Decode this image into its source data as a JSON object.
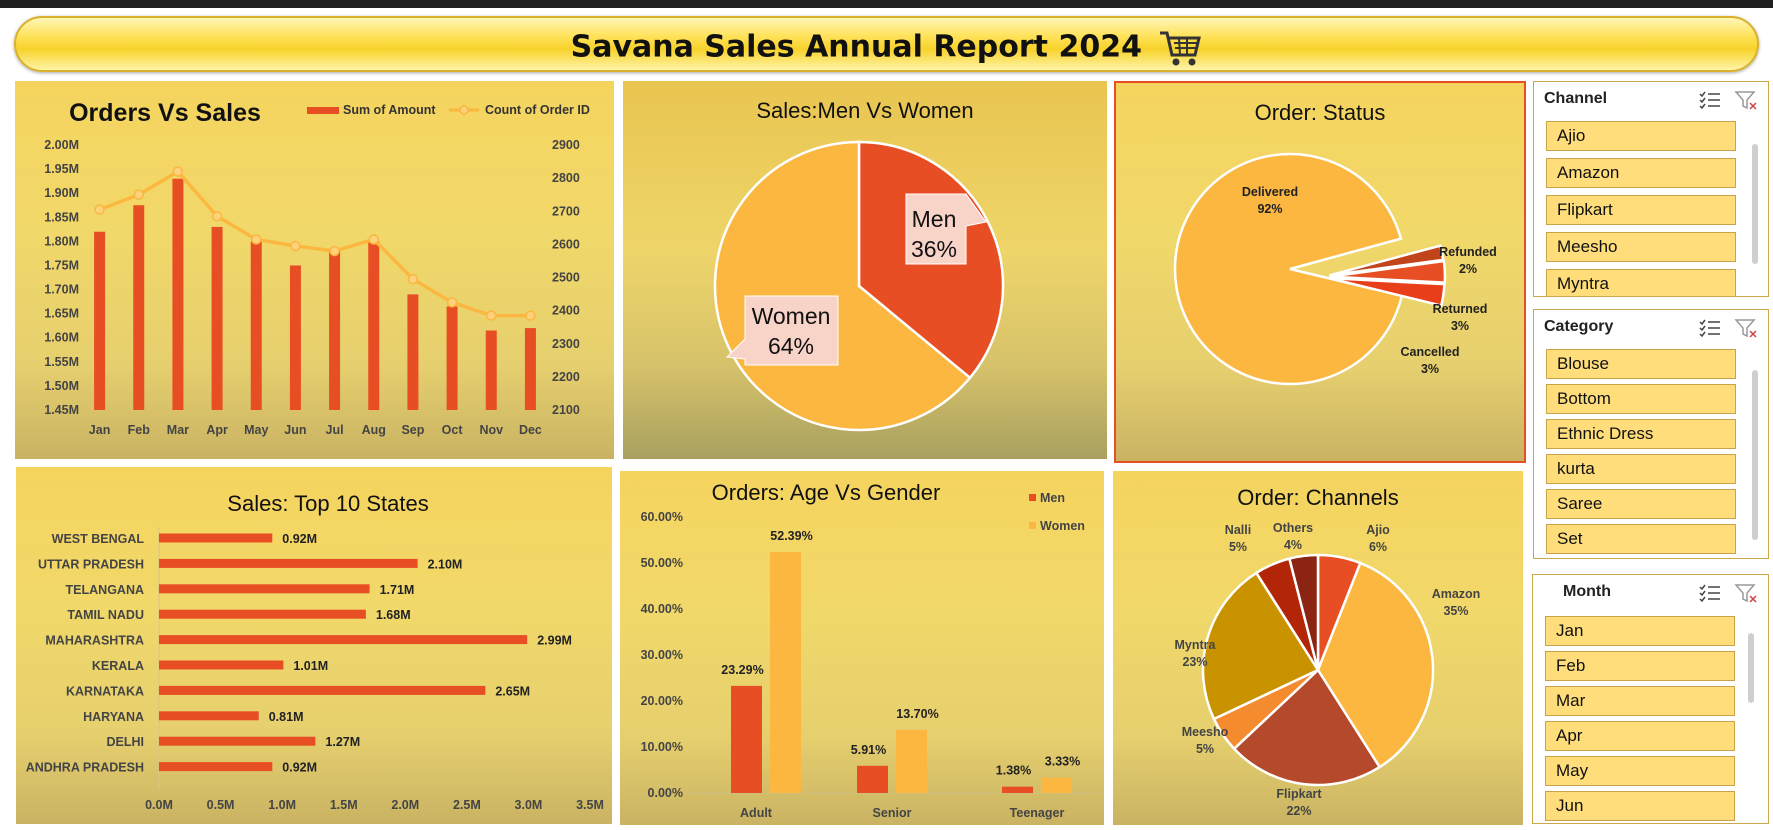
{
  "header": {
    "title": "Savana Sales Annual Report 2024",
    "icon": "shopping-cart-icon"
  },
  "colors": {
    "red": "#e84e23",
    "amber": "#fbb740",
    "rust": "#b5492b",
    "mustard": "#c99300",
    "darkred": "#b32507",
    "maroon": "#8b2412"
  },
  "chart_data": [
    {
      "id": "orders_vs_sales",
      "type": "bar+line",
      "title": "Orders Vs Sales",
      "categories": [
        "Jan",
        "Feb",
        "Mar",
        "Apr",
        "May",
        "Jun",
        "Jul",
        "Aug",
        "Sep",
        "Oct",
        "Nov",
        "Dec"
      ],
      "series": [
        {
          "name": "Sum of Amount",
          "axis": "left",
          "type": "bar",
          "values": [
            1.82,
            1.875,
            1.93,
            1.83,
            1.8,
            1.75,
            1.78,
            1.8,
            1.69,
            1.665,
            1.615,
            1.62
          ]
        },
        {
          "name": "Count of Order ID",
          "axis": "right",
          "type": "line",
          "values": [
            2705,
            2750,
            2820,
            2685,
            2615,
            2595,
            2580,
            2615,
            2495,
            2425,
            2385,
            2385
          ]
        }
      ],
      "y_left": {
        "min": 1.45,
        "max": 2.0,
        "ticks": [
          "1.45M",
          "1.50M",
          "1.55M",
          "1.60M",
          "1.65M",
          "1.70M",
          "1.75M",
          "1.80M",
          "1.85M",
          "1.90M",
          "1.95M",
          "2.00M"
        ]
      },
      "y_right": {
        "min": 2100,
        "max": 2900,
        "ticks": [
          "2100",
          "2200",
          "2300",
          "2400",
          "2500",
          "2600",
          "2700",
          "2800",
          "2900"
        ]
      },
      "legend": "top-right"
    },
    {
      "id": "men_vs_women",
      "type": "pie",
      "title": "Sales:Men Vs Women",
      "slices": [
        {
          "label": "Men",
          "value": 36,
          "text": "36%"
        },
        {
          "label": "Women",
          "value": 64,
          "text": "64%"
        }
      ]
    },
    {
      "id": "order_status",
      "type": "pie",
      "title": "Order: Status",
      "slices": [
        {
          "label": "Delivered",
          "value": 92,
          "text": "92%"
        },
        {
          "label": "Refunded",
          "value": 2,
          "text": "2%"
        },
        {
          "label": "Returned",
          "value": 3,
          "text": "3%"
        },
        {
          "label": "Cancelled",
          "value": 3,
          "text": "3%"
        }
      ]
    },
    {
      "id": "top_states",
      "type": "bar",
      "orientation": "horizontal",
      "title": "Sales: Top 10 States",
      "categories": [
        "WEST BENGAL",
        "UTTAR PRADESH",
        "TELANGANA",
        "TAMIL NADU",
        "MAHARASHTRA",
        "KERALA",
        "KARNATAKA",
        "HARYANA",
        "DELHI",
        "ANDHRA PRADESH"
      ],
      "values": [
        0.92,
        2.1,
        1.71,
        1.68,
        2.99,
        1.01,
        2.65,
        0.81,
        1.27,
        0.92
      ],
      "labels": [
        "0.92M",
        "2.10M",
        "1.71M",
        "1.68M",
        "2.99M",
        "1.01M",
        "2.65M",
        "0.81M",
        "1.27M",
        "0.92M"
      ],
      "xlim": [
        0,
        3.5
      ],
      "x_ticks": [
        "0.0M",
        "0.5M",
        "1.0M",
        "1.5M",
        "2.0M",
        "2.5M",
        "3.0M",
        "3.5M"
      ]
    },
    {
      "id": "age_vs_gender",
      "type": "bar",
      "title": "Orders: Age Vs Gender",
      "categories": [
        "Adult",
        "Senior",
        "Teenager"
      ],
      "series": [
        {
          "name": "Men",
          "values": [
            23.29,
            5.91,
            1.38
          ],
          "labels": [
            "23.29%",
            "5.91%",
            "1.38%"
          ]
        },
        {
          "name": "Women",
          "values": [
            52.39,
            13.7,
            3.33
          ],
          "labels": [
            "52.39%",
            "13.70%",
            "3.33%"
          ]
        }
      ],
      "ylim": [
        0,
        60
      ],
      "y_ticks": [
        "0.00%",
        "10.00%",
        "20.00%",
        "30.00%",
        "40.00%",
        "50.00%",
        "60.00%"
      ],
      "legend": "top-right"
    },
    {
      "id": "order_channels",
      "type": "pie",
      "title": "Order: Channels",
      "slices": [
        {
          "label": "Ajio",
          "value": 6,
          "text": "6%"
        },
        {
          "label": "Amazon",
          "value": 35,
          "text": "35%"
        },
        {
          "label": "Flipkart",
          "value": 22,
          "text": "22%"
        },
        {
          "label": "Meesho",
          "value": 5,
          "text": "5%"
        },
        {
          "label": "Myntra",
          "value": 23,
          "text": "23%"
        },
        {
          "label": "Nalli",
          "value": 5,
          "text": "5%"
        },
        {
          "label": "Others",
          "value": 4,
          "text": "4%"
        }
      ]
    }
  ],
  "slicers": {
    "channel": {
      "title": "Channel",
      "items": [
        "Ajio",
        "Amazon",
        "Flipkart",
        "Meesho",
        "Myntra"
      ]
    },
    "category": {
      "title": "Category",
      "items": [
        "Blouse",
        "Bottom",
        "Ethnic Dress",
        "kurta",
        "Saree",
        "Set"
      ]
    },
    "month": {
      "title": "Month",
      "items": [
        "Jan",
        "Feb",
        "Mar",
        "Apr",
        "May",
        "Jun"
      ]
    }
  }
}
